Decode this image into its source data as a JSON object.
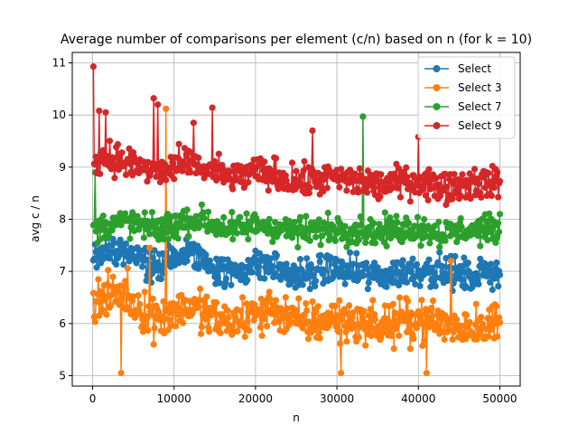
{
  "chart_data": {
    "type": "line",
    "title": "Average number of comparisons per element (c/n) based on n (for k = 10)",
    "xlabel": "n",
    "ylabel": "avg c / n",
    "xlim": [
      -2500,
      52500
    ],
    "ylim": [
      4.8,
      11.2
    ],
    "xticks": [
      0,
      10000,
      20000,
      30000,
      40000,
      50000
    ],
    "yticks": [
      5,
      6,
      7,
      8,
      9,
      10,
      11
    ],
    "grid": true,
    "legend_position": "top-right",
    "marker": "circle",
    "n_start": 100,
    "n_step": 100,
    "n_count": 500,
    "series": [
      {
        "name": "Select",
        "color": "#1f77b4",
        "base": [
          7.3,
          7.45,
          7.4,
          7.25,
          7.05,
          7.2,
          7.35,
          7.3,
          7.1,
          6.95,
          7.05,
          7.15,
          7.1,
          6.95,
          6.9,
          7.0,
          7.05,
          7.0,
          6.95,
          6.9,
          6.95,
          7.0,
          7.05,
          7.0,
          6.95,
          6.9,
          7.0,
          7.0
        ],
        "spread": 0.45,
        "spikes": []
      },
      {
        "name": "Select 3",
        "color": "#ff7f0e",
        "base": [
          6.4,
          6.5,
          6.6,
          6.3,
          6.1,
          6.2,
          6.3,
          6.25,
          6.1,
          6.0,
          6.1,
          6.2,
          6.3,
          6.1,
          6.0,
          6.05,
          6.1,
          6.05,
          6.0,
          5.95,
          6.0,
          6.05,
          6.1,
          6.0,
          5.95,
          5.95,
          6.0,
          6.0
        ],
        "spread": 0.6,
        "spikes": [
          [
            9000,
            10.12
          ],
          [
            7000,
            7.45
          ],
          [
            44000,
            7.2
          ],
          [
            30500,
            5.05
          ],
          [
            41000,
            5.05
          ],
          [
            3500,
            5.05
          ]
        ]
      },
      {
        "name": "Select 7",
        "color": "#2ca02c",
        "base": [
          7.8,
          7.9,
          7.95,
          7.9,
          7.8,
          7.85,
          7.95,
          8.0,
          7.9,
          7.8,
          7.85,
          7.9,
          7.85,
          7.8,
          7.75,
          7.8,
          7.85,
          7.8,
          7.8,
          7.75,
          7.8,
          7.85,
          7.8,
          7.75,
          7.75,
          7.8,
          7.8,
          7.8
        ],
        "spread": 0.4,
        "spikes": [
          [
            33200,
            9.97
          ],
          [
            300,
            8.9
          ]
        ]
      },
      {
        "name": "Select 9",
        "color": "#d62728",
        "base": [
          9.1,
          9.2,
          9.1,
          9.0,
          8.9,
          8.95,
          9.05,
          9.0,
          8.9,
          8.8,
          8.85,
          8.9,
          8.85,
          8.75,
          8.7,
          8.75,
          8.8,
          8.75,
          8.7,
          8.65,
          8.7,
          8.75,
          8.7,
          8.65,
          8.65,
          8.7,
          8.7,
          8.7
        ],
        "spread": 0.45,
        "spikes": [
          [
            100,
            10.93
          ],
          [
            7500,
            10.32
          ],
          [
            800,
            10.08
          ],
          [
            1600,
            10.05
          ],
          [
            14700,
            10.14
          ],
          [
            12400,
            9.85
          ],
          [
            8000,
            10.2
          ],
          [
            40000,
            9.58
          ],
          [
            27000,
            9.7
          ]
        ]
      }
    ]
  }
}
